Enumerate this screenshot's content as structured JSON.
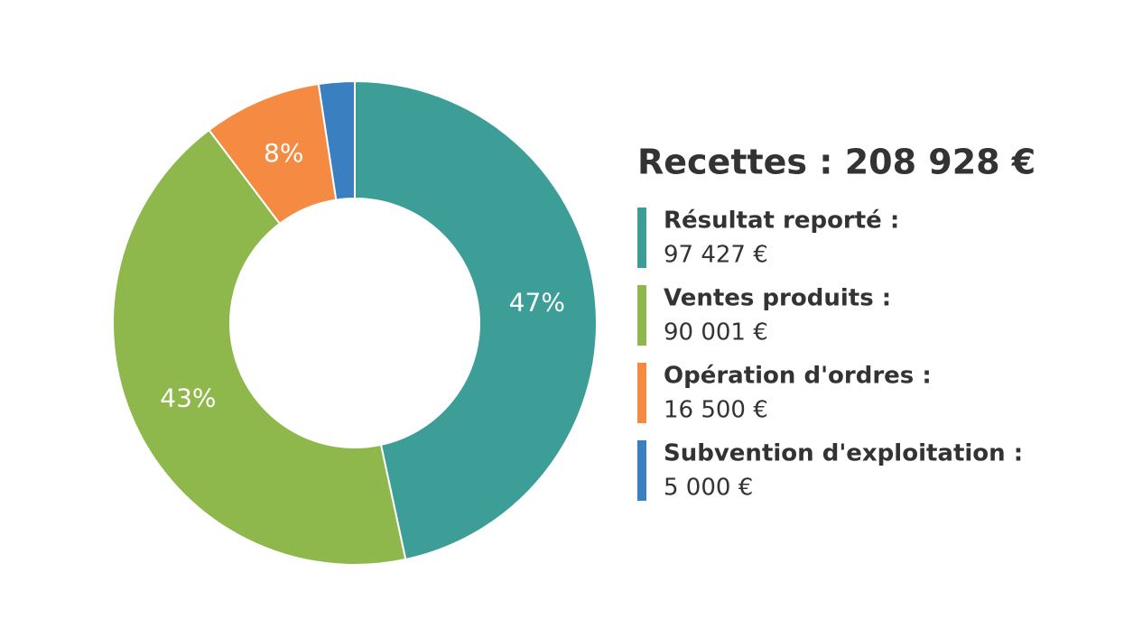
{
  "chart_data": {
    "type": "donut",
    "title": "Recettes : 208 928 €",
    "categories": [
      "Résultat reporté :",
      "Ventes produits :",
      "Opération d'ordres :",
      "Subvention d'exploitation :"
    ],
    "values": [
      97427,
      90001,
      16500,
      5000
    ],
    "value_labels": [
      "97 427 €",
      "90 001 €",
      "16 500 €",
      "5 000 €"
    ],
    "slice_labels": [
      "47%",
      "43%",
      "8%",
      null
    ],
    "colors": [
      "#3d9e98",
      "#8fb84c",
      "#f58a42",
      "#3a7fbf"
    ]
  }
}
